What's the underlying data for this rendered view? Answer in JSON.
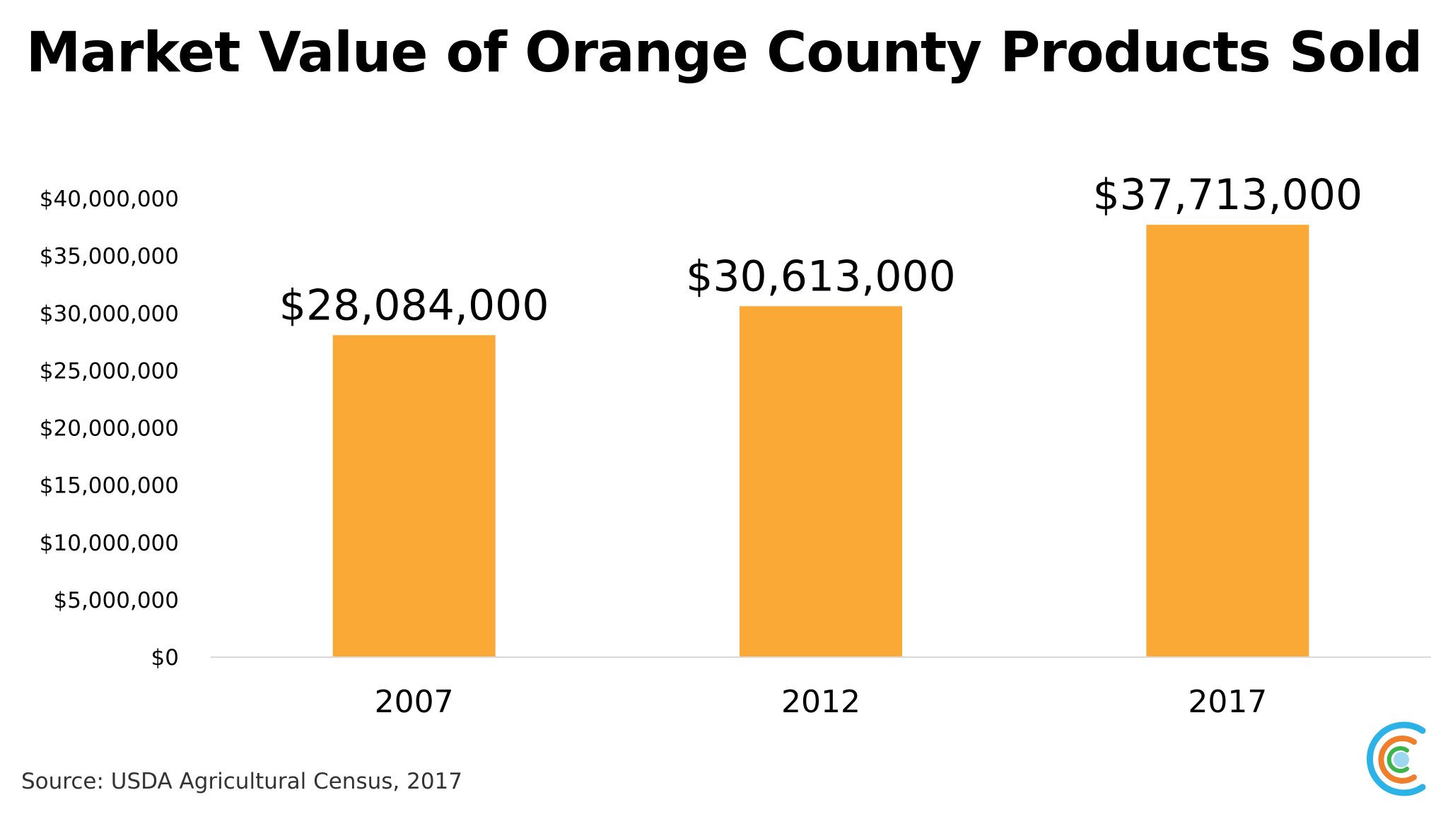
{
  "title": "Market Value of Orange County Products Sold",
  "source": "Source: USDA Agricultural Census, 2017",
  "colors": {
    "bar": "#FBA936",
    "axis_line": "#D9D9D9",
    "text": "#000000",
    "logo_blue": "#2BB3E8",
    "logo_orange": "#F07F2C",
    "logo_green": "#3BB44A",
    "logo_dot": "#9DD7F0"
  },
  "logo": {
    "icon": "concentric-c-logo-icon"
  },
  "chart_data": {
    "type": "bar",
    "title": "Market Value of Orange County Products Sold",
    "xlabel": "",
    "ylabel": "",
    "categories": [
      "2007",
      "2012",
      "2017"
    ],
    "values": [
      28084000,
      30613000,
      37713000
    ],
    "data_labels": [
      "$28,084,000",
      "$30,613,000",
      "$37,713,000"
    ],
    "ylim": [
      0,
      40000000
    ],
    "y_ticks": [
      0,
      5000000,
      10000000,
      15000000,
      20000000,
      25000000,
      30000000,
      35000000,
      40000000
    ],
    "y_tick_labels": [
      "$0",
      "$5,000,000",
      "$10,000,000",
      "$15,000,000",
      "$20,000,000",
      "$25,000,000",
      "$30,000,000",
      "$35,000,000",
      "$40,000,000"
    ],
    "grid": false,
    "legend": "none"
  }
}
